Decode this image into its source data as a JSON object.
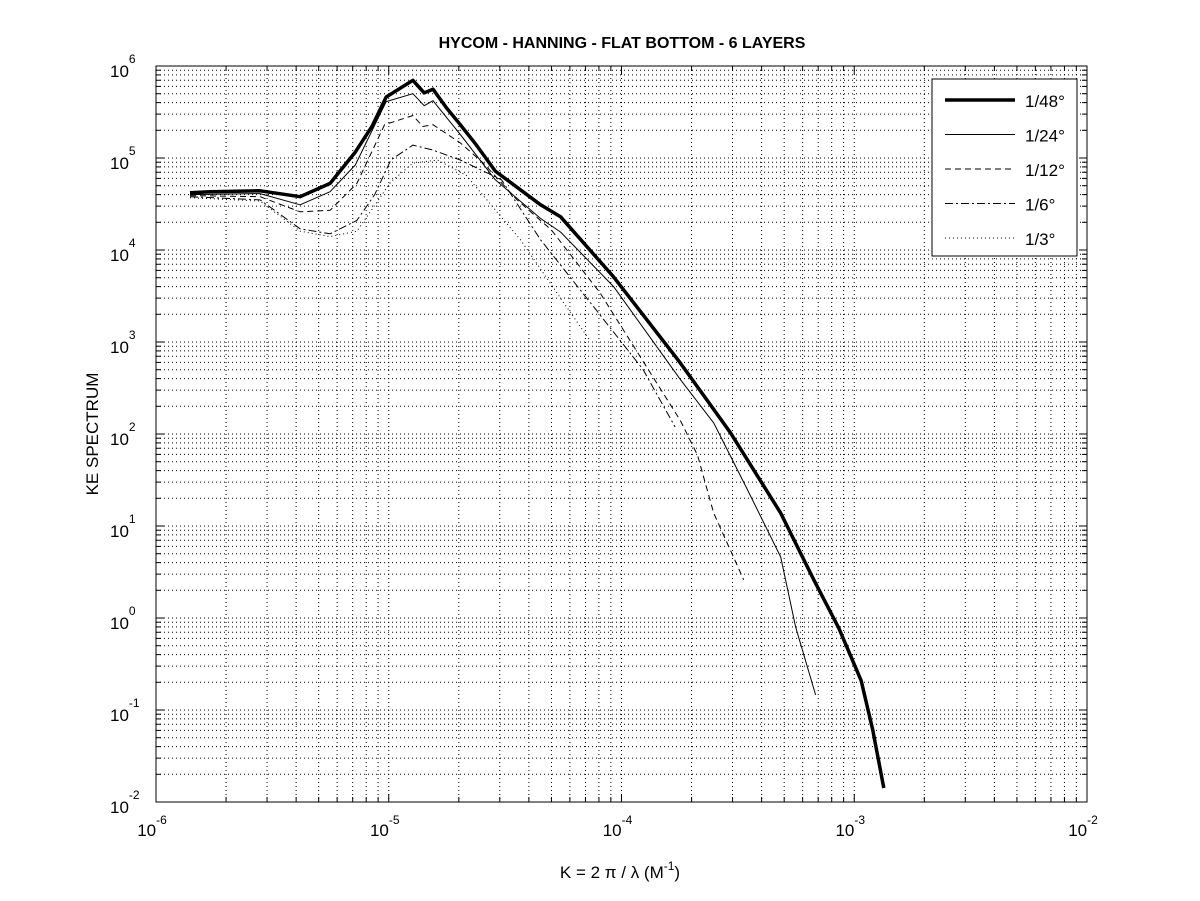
{
  "chart_data": {
    "type": "line",
    "title": "HYCOM - HANNING - FLAT BOTTOM - 6 LAYERS",
    "xlabel": "K = 2 π / λ  (M",
    "xlabel_sup": "-1",
    "xlabel_end": ")",
    "ylabel": "KE SPECTRUM",
    "xscale": "log",
    "yscale": "log",
    "xlim": [
      1e-06,
      0.01
    ],
    "ylim": [
      0.01,
      1000000.0
    ],
    "grid": true,
    "legend_position": "top-right",
    "x_ticks": [
      {
        "base": "10",
        "exp": "-6"
      },
      {
        "base": "10",
        "exp": "-5"
      },
      {
        "base": "10",
        "exp": "-4"
      },
      {
        "base": "10",
        "exp": "-3"
      },
      {
        "base": "10",
        "exp": "-2"
      }
    ],
    "y_ticks": [
      {
        "base": "10",
        "exp": "-2"
      },
      {
        "base": "10",
        "exp": "-1"
      },
      {
        "base": "10",
        "exp": "0"
      },
      {
        "base": "10",
        "exp": "1"
      },
      {
        "base": "10",
        "exp": "2"
      },
      {
        "base": "10",
        "exp": "3"
      },
      {
        "base": "10",
        "exp": "4"
      },
      {
        "base": "10",
        "exp": "5"
      },
      {
        "base": "10",
        "exp": "6"
      }
    ],
    "series": [
      {
        "name": "1/48°",
        "style": "solid-thick",
        "color": "#000000",
        "x": [
          1.4e-06,
          1.71e-06,
          2.8e-06,
          4.16e-06,
          5.6e-06,
          7.18e-06,
          8.49e-06,
          9.75e-06,
          1.27e-05,
          1.42e-05,
          1.55e-05,
          1.77e-05,
          2.03e-05,
          2.38e-05,
          2.87e-05,
          4.49e-05,
          5.47e-05,
          9.25e-05,
          0.000179,
          0.000294,
          0.000483,
          0.00067,
          0.000857,
          0.00107,
          0.0012,
          0.00134
        ],
        "y": [
          42000.0,
          43000.0,
          44000.0,
          38000.0,
          53000.0,
          116000.0,
          223000.0,
          460000.0,
          700000.0,
          510000.0,
          560000.0,
          350000.0,
          230000.0,
          138000.0,
          72000.0,
          31000.0,
          23000.0,
          5100.0,
          590.0,
          103.0,
          13.8,
          2.6,
          0.78,
          0.21,
          0.061,
          0.0142
        ]
      },
      {
        "name": "1/24°",
        "style": "solid",
        "color": "#000000",
        "x": [
          1.4e-06,
          2.8e-06,
          4.16e-06,
          5.6e-06,
          7.18e-06,
          9.75e-06,
          1.27e-05,
          1.42e-05,
          1.55e-05,
          2.03e-05,
          2.87e-05,
          4.49e-05,
          5.47e-05,
          9.25e-05,
          0.000179,
          0.000249,
          0.000348,
          0.000483,
          0.00056,
          0.000682
        ],
        "y": [
          40000.0,
          41000.0,
          31000.0,
          43000.0,
          84000.0,
          410000.0,
          500000.0,
          370000.0,
          420000.0,
          180000.0,
          58000.0,
          22000.0,
          15700.0,
          4000.0,
          390.0,
          132.0,
          24.6,
          4.6,
          0.8,
          0.146
        ]
      },
      {
        "name": "1/12°",
        "style": "dashed",
        "color": "#000000",
        "x": [
          1.4e-06,
          2.8e-06,
          4.16e-06,
          5.6e-06,
          7.3e-06,
          9.6e-06,
          1.27e-05,
          1.4e-05,
          1.55e-05,
          2.03e-05,
          2.55e-05,
          3.56e-05,
          5e-05,
          8.1e-05,
          0.000179,
          0.000212,
          0.000249,
          0.000335
        ],
        "y": [
          39000.0,
          38000.0,
          26000.0,
          27000.0,
          53000.0,
          230000.0,
          290000.0,
          220000.0,
          230000.0,
          146000.0,
          88000.0,
          35000.0,
          16500.0,
          3400.0,
          140.0,
          59,
          13.8,
          2.6
        ]
      },
      {
        "name": "1/6°",
        "style": "dash-dot",
        "color": "#000000",
        "x": [
          1.4e-06,
          2.8e-06,
          4.16e-06,
          5.6e-06,
          7.3e-06,
          8.7e-06,
          1.02e-05,
          1.27e-05,
          1.55e-05,
          2.03e-05,
          3.05e-05,
          4.49e-05,
          8.1e-05,
          0.000124,
          0.00017
        ],
        "y": [
          38000.0,
          35000.0,
          17000.0,
          15000.0,
          21000.0,
          40000.0,
          95000.0,
          138000.0,
          122000.0,
          95000.0,
          58000.0,
          12900.0,
          1960.0,
          500.0,
          119.0
        ]
      },
      {
        "name": "1/3°",
        "style": "dotted",
        "color": "#000000",
        "x": [
          1.4e-06,
          2.8e-06,
          4.16e-06,
          5.6e-06,
          7.3e-06,
          1.02e-05,
          1.27e-05,
          1.62e-05,
          2.15e-05,
          3.68e-05,
          5.47e-05,
          7.3e-05
        ],
        "y": [
          37000.0,
          34000.0,
          16000.0,
          14000.0,
          16000.0,
          55000.0,
          88000.0,
          95000.0,
          65000.0,
          12900.0,
          3000.0,
          1050.0
        ]
      }
    ]
  }
}
